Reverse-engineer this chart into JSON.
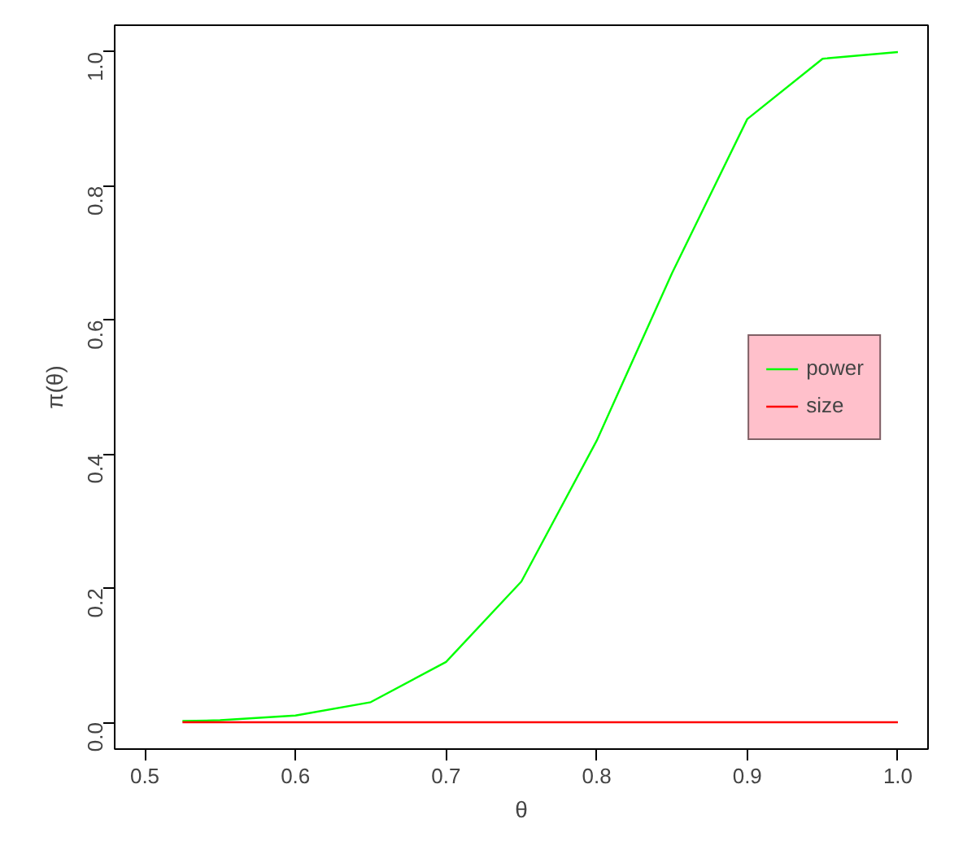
{
  "chart_data": {
    "type": "line",
    "xlabel": "θ",
    "ylabel": "π(θ)",
    "x": [
      0.525,
      0.55,
      0.6,
      0.65,
      0.7,
      0.75,
      0.8,
      0.85,
      0.9,
      0.95,
      1.0
    ],
    "series": [
      {
        "name": "power",
        "color": "#00ff00",
        "values": [
          0.002,
          0.003,
          0.01,
          0.03,
          0.09,
          0.21,
          0.42,
          0.67,
          0.9,
          0.99,
          1.0
        ]
      },
      {
        "name": "size",
        "color": "#ff0000",
        "values": [
          0,
          0,
          0,
          0,
          0,
          0,
          0,
          0,
          0,
          0,
          0
        ]
      }
    ],
    "xlim": [
      0.48,
      1.02
    ],
    "ylim": [
      -0.04,
      1.04
    ],
    "xticks": [
      0.5,
      0.6,
      0.7,
      0.8,
      0.9,
      {
        "value": 1,
        "label": "1.0"
      }
    ],
    "yticks": [
      {
        "value": 0,
        "label": "0.0"
      },
      0.2,
      0.4,
      0.6,
      0.8,
      {
        "value": 1,
        "label": "1.0"
      }
    ],
    "grid": false,
    "legend": "right",
    "marker": "none",
    "line_style": "solid"
  }
}
